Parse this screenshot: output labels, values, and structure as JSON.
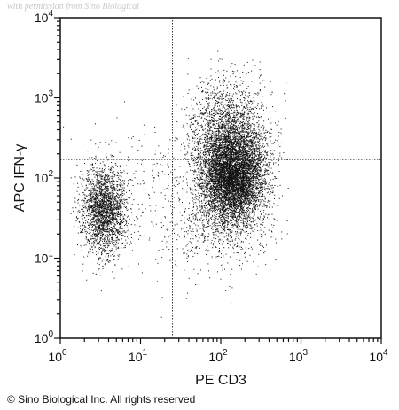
{
  "watermark": "with permission from Sino Biological",
  "copyright": "© Sino Biological Inc. All rights reserved",
  "chart_data": {
    "type": "scatter",
    "title": "",
    "xlabel": "PE CD3",
    "ylabel": "APC IFN-γ",
    "xscale": "log",
    "yscale": "log",
    "xlim": [
      1,
      10000
    ],
    "ylim": [
      1,
      10000
    ],
    "x_ticks": [
      {
        "value": 1,
        "base": "10",
        "exp": "0"
      },
      {
        "value": 10,
        "base": "10",
        "exp": "1"
      },
      {
        "value": 100,
        "base": "10",
        "exp": "2"
      },
      {
        "value": 1000,
        "base": "10",
        "exp": "3"
      },
      {
        "value": 10000,
        "base": "10",
        "exp": "4"
      }
    ],
    "y_ticks": [
      {
        "value": 1,
        "base": "10",
        "exp": "0"
      },
      {
        "value": 10,
        "base": "10",
        "exp": "1"
      },
      {
        "value": 100,
        "base": "10",
        "exp": "2"
      },
      {
        "value": 1000,
        "base": "10",
        "exp": "3"
      },
      {
        "value": 10000,
        "base": "10",
        "exp": "4"
      }
    ],
    "quadrant_gates": {
      "x": 25,
      "y": 170
    },
    "populations": [
      {
        "center": [
          3.5,
          40
        ],
        "spread_log": [
          0.14,
          0.28
        ],
        "count": 2300
      },
      {
        "center": [
          140,
          110
        ],
        "spread_log": [
          0.2,
          0.3
        ],
        "count": 6500
      },
      {
        "center": [
          120,
          400
        ],
        "spread_log": [
          0.25,
          0.35
        ],
        "count": 1600
      },
      {
        "center": [
          100,
          30
        ],
        "spread_log": [
          0.3,
          0.32
        ],
        "count": 700
      },
      {
        "center": [
          15,
          60
        ],
        "spread_log": [
          0.45,
          0.5
        ],
        "count": 250
      }
    ],
    "grid": false,
    "legend": "none",
    "point_color": "#111111"
  }
}
